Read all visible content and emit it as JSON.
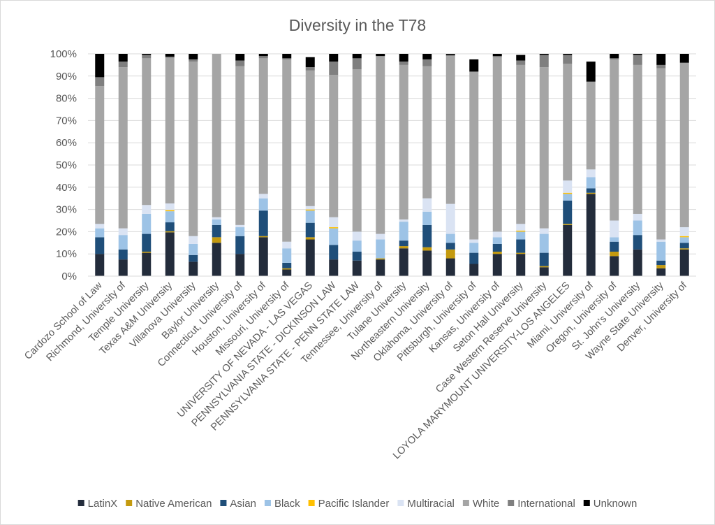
{
  "chart_data": {
    "type": "bar",
    "stacked": true,
    "percent": true,
    "title": "Diversity in the T78",
    "yticks": [
      "0%",
      "10%",
      "20%",
      "30%",
      "40%",
      "50%",
      "60%",
      "70%",
      "80%",
      "90%",
      "100%"
    ],
    "ylim": [
      0,
      100
    ],
    "grid": true,
    "legend_position": "bottom",
    "categories": [
      "Cardozo School of Law",
      "Richmond, University of",
      "Temple University",
      "Texas A&M University",
      "Villanova University",
      "Baylor University",
      "Connecticut, University of",
      "Houston, University of",
      "Missouri, University of",
      "UNIVERSITY OF NEVADA - LAS VEGAS",
      "PENNSYLVANIA STATE - DICKINSON LAW",
      "PENNSYLVANIA STATE - PENN STATE LAW",
      "Tennessee, University of",
      "Tulane University",
      "Northeastern University",
      "Oklahoma, University of",
      "Pittsburgh, University of",
      "Kansas, University of",
      "Seton Hall University",
      "Case Western Reserve University",
      "LOYOLA MARYMOUNT UNIVERSITY-LOS ANGELES",
      "Miami, University of",
      "Oregon, University of",
      "St. John's University",
      "Wayne State University",
      "Denver, University of"
    ],
    "series": [
      {
        "name": "LatinX",
        "color": "#232c3b",
        "values": [
          10,
          7.5,
          10.5,
          19.7,
          6.5,
          15,
          10,
          17.5,
          3,
          16.5,
          7.5,
          7,
          7.5,
          12.5,
          11.5,
          8,
          5.5,
          10,
          10,
          4,
          23,
          37,
          9,
          12,
          3.5,
          12
        ]
      },
      {
        "name": "Native American",
        "color": "#c49a0f",
        "values": [
          0,
          0,
          0.5,
          0.5,
          0,
          2.5,
          0,
          0.5,
          0.5,
          1,
          0,
          0,
          0.5,
          1,
          1.5,
          4,
          0,
          1,
          0.5,
          0.5,
          0.5,
          0.5,
          2,
          0,
          1.5,
          0.5
        ]
      },
      {
        "name": "Asian",
        "color": "#1f4e79",
        "values": [
          7.5,
          4.5,
          8,
          4,
          3,
          5.5,
          8,
          11.5,
          2.5,
          6.5,
          6.5,
          4,
          0,
          2.5,
          10,
          3,
          5,
          3.5,
          6,
          6,
          10.5,
          2,
          4.5,
          6.5,
          2,
          2.5
        ]
      },
      {
        "name": "Black",
        "color": "#9dc3e6",
        "values": [
          4,
          6.5,
          9,
          5,
          5,
          2.5,
          4,
          5.5,
          6.5,
          5.5,
          7.5,
          5,
          8.5,
          8.5,
          6,
          4,
          4.5,
          3,
          3.5,
          8.5,
          3,
          5,
          2,
          6.5,
          8.5,
          2.5
        ]
      },
      {
        "name": "Pacific Islander",
        "color": "#ffc000",
        "values": [
          0,
          0,
          0,
          0.5,
          0,
          0,
          0,
          0,
          0,
          0.5,
          0.5,
          0,
          0,
          0,
          0,
          0,
          0,
          0,
          0.5,
          0,
          0.5,
          0,
          0,
          0,
          0,
          0.5
        ]
      },
      {
        "name": "Multiracial",
        "color": "#dae3f3",
        "values": [
          2,
          3,
          4,
          3,
          3.5,
          1,
          1,
          2,
          3,
          1.5,
          4.5,
          4,
          2.5,
          1,
          6,
          13.5,
          1.5,
          2.5,
          3,
          2.5,
          5.5,
          3.5,
          7.5,
          3,
          1,
          4
        ]
      },
      {
        "name": "White",
        "color": "#a5a5a5",
        "values": [
          62,
          72.5,
          66,
          65.5,
          78.5,
          73.5,
          71.5,
          61,
          82,
          61,
          64,
          73,
          80,
          69.5,
          59.5,
          66.5,
          75.5,
          78.5,
          71.5,
          72.5,
          52.5,
          39.5,
          72.5,
          67,
          77,
          74
        ]
      },
      {
        "name": "International",
        "color": "#7f7f7f",
        "values": [
          4,
          2.5,
          1.5,
          0.5,
          1,
          0,
          2.5,
          1,
          0.5,
          1.5,
          6,
          5,
          0,
          1.5,
          3,
          0.5,
          0,
          0.5,
          2,
          5.5,
          4,
          0,
          0.5,
          4.5,
          1.5,
          0
        ]
      },
      {
        "name": "Unknown",
        "color": "#000000",
        "values": [
          10.5,
          3.5,
          0.5,
          1.3,
          2.5,
          0,
          3,
          1,
          2,
          4.5,
          3.5,
          2,
          1,
          3.5,
          2.5,
          0.5,
          5.5,
          1,
          2.5,
          0.5,
          0.5,
          9,
          2,
          0.5,
          5,
          4
        ]
      }
    ]
  }
}
